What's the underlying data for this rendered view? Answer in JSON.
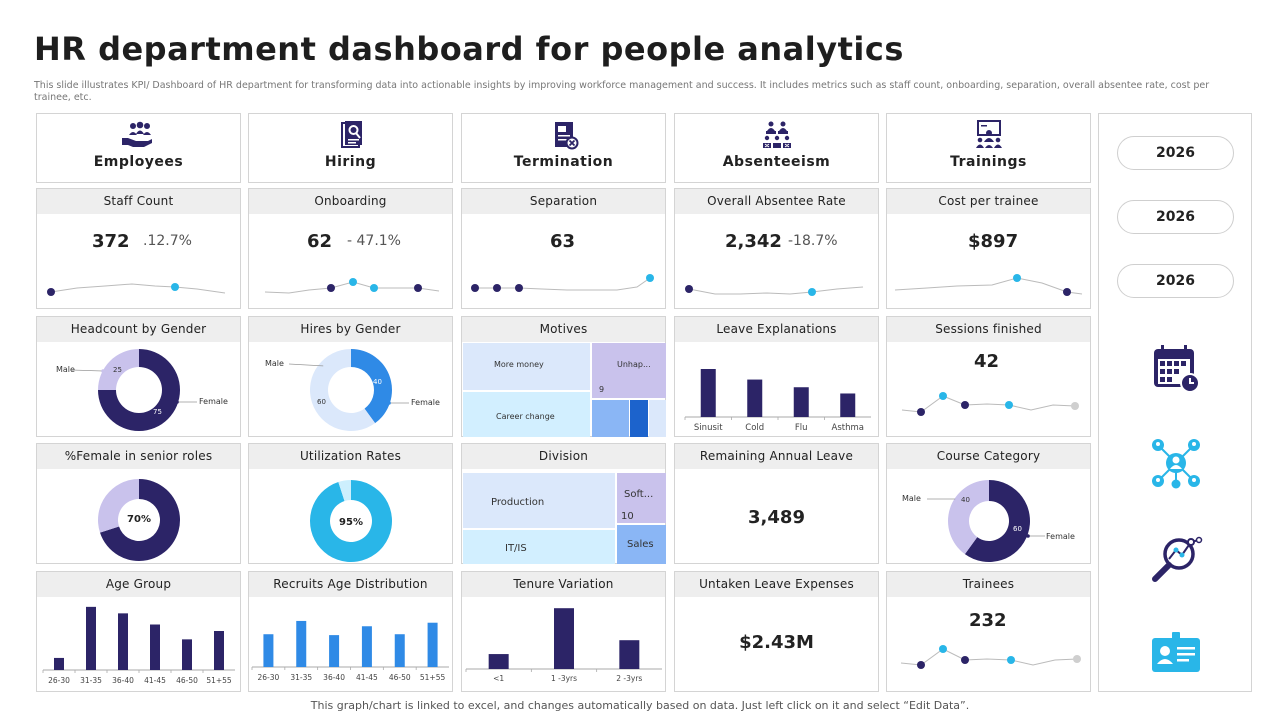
{
  "title": "HR department dashboard for people analytics",
  "description": "This slide illustrates KPI/  Dashboard of HR department  for transforming data into actionable insights by improving workforce management and success. It includes metrics such as staff count, onboarding, separation, overall absentee rate, cost per trainee, etc.",
  "footer": "This graph/chart is linked to excel,  and changes automatically based on data. Just left click on it and select “Edit Data”.",
  "colors": {
    "navy": "#2c2467",
    "cyan": "#29b6e8",
    "blue": "#2f8ae6",
    "lavender": "#c9c2ec",
    "lightblue": "#dbe8fb"
  },
  "headers": [
    {
      "label": "Employees",
      "icon": "hand-people-icon"
    },
    {
      "label": "Hiring",
      "icon": "resume-icon"
    },
    {
      "label": "Termination",
      "icon": "termination-document-icon"
    },
    {
      "label": "Absenteeism",
      "icon": "absent-people-icon"
    },
    {
      "label": "Trainings",
      "icon": "training-presentation-icon"
    }
  ],
  "kpis": {
    "staff": {
      "title": "Staff Count",
      "value": "372",
      "change": ".12.7%"
    },
    "onboarding": {
      "title": "Onboarding",
      "value": "62",
      "change": "- 47.1%"
    },
    "separation": {
      "title": "Separation",
      "value": "63"
    },
    "absentee": {
      "title": "Overall Absentee Rate",
      "value": "2,342",
      "change": "-18.7%"
    },
    "cost": {
      "title": "Cost per trainee",
      "value": "$897"
    }
  },
  "panels": {
    "headcount_gender": {
      "title": "Headcount  by Gender",
      "male_label": "Male",
      "female_label": "Female",
      "male": 25,
      "female": 75,
      "male_text": "25",
      "female_text": "75"
    },
    "hires_gender": {
      "title": "Hires by Gender",
      "male_label": "Male",
      "female_label": "Female",
      "male": 60,
      "female": 40,
      "male_text": "60",
      "female_text": "40"
    },
    "motives": {
      "title": "Motives",
      "items": [
        "More money",
        "Unhap...",
        "9",
        "Career change"
      ]
    },
    "leave_explanations": {
      "title": "Leave Explanations",
      "categories": [
        "Sinusit",
        "Cold",
        "Flu",
        "Asthma"
      ],
      "values": [
        100,
        78,
        62,
        49
      ]
    },
    "sessions": {
      "title": "Sessions finished",
      "value": "42"
    },
    "female_senior": {
      "title": "%Female in senior roles",
      "value": 70,
      "text": "70%"
    },
    "utilization": {
      "title": "Utilization Rates",
      "value": 95,
      "text": "95%"
    },
    "division": {
      "title": "Division",
      "items": [
        "Production",
        "Soft...",
        "10",
        "IT/IS",
        "Sales"
      ]
    },
    "remaining_leave": {
      "title": "Remaining  Annual Leave",
      "value": "3,489"
    },
    "course_category": {
      "title": "Course Category",
      "male_label": "Male",
      "female_label": "Female",
      "male": 40,
      "female": 60,
      "male_text": "40",
      "female_text": "60"
    },
    "untaken": {
      "title": "Untaken Leave Expenses",
      "value": "$2.43M"
    },
    "trainees": {
      "title": "Trainees",
      "value": "232"
    }
  },
  "chart_data": [
    {
      "type": "bar",
      "title": "Age Group",
      "categories": [
        "26-30",
        "31-35",
        "36-40",
        "41-45",
        "46-50",
        "51+55"
      ],
      "values": [
        13,
        68,
        61,
        49,
        33,
        42
      ]
    },
    {
      "type": "bar",
      "title": "Recruits Age Distribution",
      "categories": [
        "26-30",
        "31-35",
        "36-40",
        "41-45",
        "46-50",
        "51+55"
      ],
      "values": [
        37,
        52,
        36,
        46,
        37,
        50
      ]
    },
    {
      "type": "bar",
      "title": "Tenure Variation",
      "categories": [
        "<1",
        "1 -3yrs",
        "2 -3yrs"
      ],
      "values": [
        14,
        57,
        27
      ]
    }
  ],
  "years": [
    "2026",
    "2026",
    "2026"
  ],
  "side_icons": [
    "calendar-clock-icon",
    "network-people-icon",
    "search-analytics-icon",
    "id-card-icon"
  ]
}
